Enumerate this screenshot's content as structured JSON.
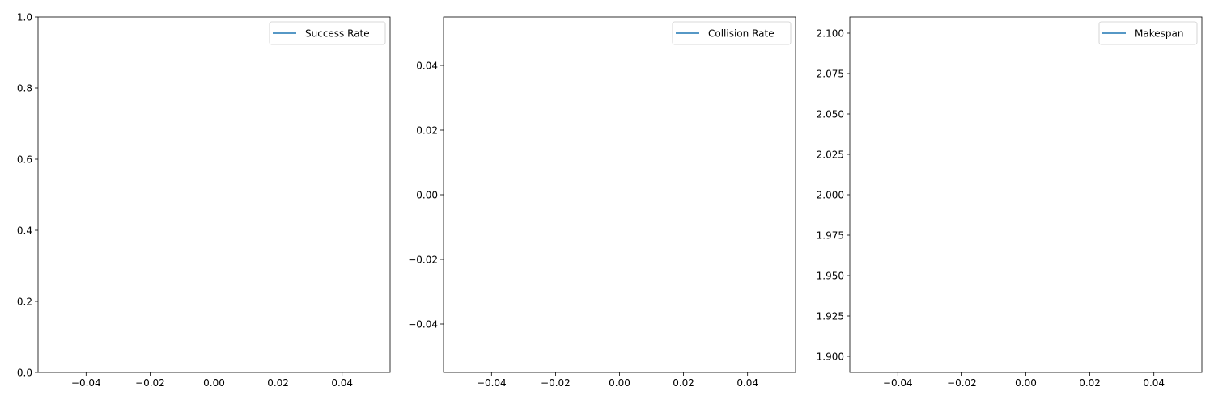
{
  "chart_data": [
    {
      "type": "line",
      "title": "",
      "xlabel": "",
      "ylabel": "",
      "xlim": [
        -0.055,
        0.055
      ],
      "ylim": [
        0,
        1
      ],
      "xticks": [
        -0.04,
        -0.02,
        0.0,
        0.02,
        0.04
      ],
      "xtick_labels": [
        "−0.04",
        "−0.02",
        "0.00",
        "0.02",
        "0.04"
      ],
      "yticks": [
        0,
        0.2,
        0.4,
        0.6,
        0.8,
        1.0
      ],
      "ytick_labels": [
        "0.0",
        "0.2",
        "0.4",
        "0.6",
        "0.8",
        "1.0"
      ],
      "series": [
        {
          "name": "Success Rate",
          "color": "#1f77b4",
          "x": [],
          "y": []
        }
      ],
      "legend": "top-right",
      "grid": false
    },
    {
      "type": "line",
      "title": "",
      "xlabel": "",
      "ylabel": "",
      "xlim": [
        -0.055,
        0.055
      ],
      "ylim": [
        -0.055,
        0.055
      ],
      "xticks": [
        -0.04,
        -0.02,
        0.0,
        0.02,
        0.04
      ],
      "xtick_labels": [
        "−0.04",
        "−0.02",
        "0.00",
        "0.02",
        "0.04"
      ],
      "yticks": [
        -0.04,
        -0.02,
        0.0,
        0.02,
        0.04
      ],
      "ytick_labels": [
        "−0.04",
        "−0.02",
        "0.00",
        "0.02",
        "0.04"
      ],
      "series": [
        {
          "name": "Collision Rate",
          "color": "#1f77b4",
          "x": [],
          "y": []
        }
      ],
      "legend": "top-right",
      "grid": false
    },
    {
      "type": "line",
      "title": "",
      "xlabel": "",
      "ylabel": "",
      "xlim": [
        -0.055,
        0.055
      ],
      "ylim": [
        1.89,
        2.11
      ],
      "xticks": [
        -0.04,
        -0.02,
        0.0,
        0.02,
        0.04
      ],
      "xtick_labels": [
        "−0.04",
        "−0.02",
        "0.00",
        "0.02",
        "0.04"
      ],
      "yticks": [
        1.9,
        1.925,
        1.95,
        1.975,
        2.0,
        2.025,
        2.05,
        2.075,
        2.1
      ],
      "ytick_labels": [
        "1.900",
        "1.925",
        "1.950",
        "1.975",
        "2.000",
        "2.025",
        "2.050",
        "2.075",
        "2.100"
      ],
      "series": [
        {
          "name": "Makespan",
          "color": "#1f77b4",
          "x": [],
          "y": []
        }
      ],
      "legend": "top-right",
      "grid": false
    }
  ]
}
